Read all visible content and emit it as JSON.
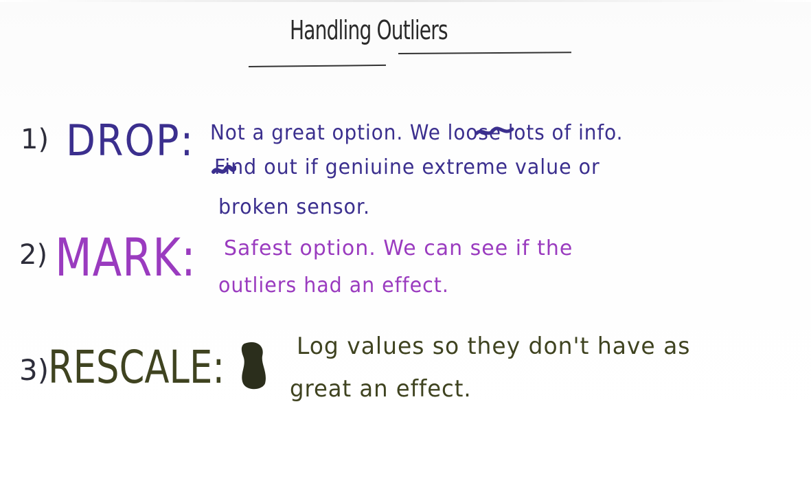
{
  "title": "Handling Outliers",
  "items": [
    {
      "number": "1)",
      "heading": "DROP:",
      "color": "#3b2f8e",
      "lines": [
        "Not a great option. We loose lots of info.",
        "Find out if geniuine extreme value or",
        "broken sensor."
      ]
    },
    {
      "number": "2)",
      "heading": "MARK:",
      "color": "#9a3bbf",
      "lines": [
        "Safest option. We can see if the",
        "outliers had an effect."
      ]
    },
    {
      "number": "3)",
      "heading": "RESCALE:",
      "color": "#3f4320",
      "lines": [
        "Log values so they don't have as",
        "great an effect."
      ]
    }
  ]
}
